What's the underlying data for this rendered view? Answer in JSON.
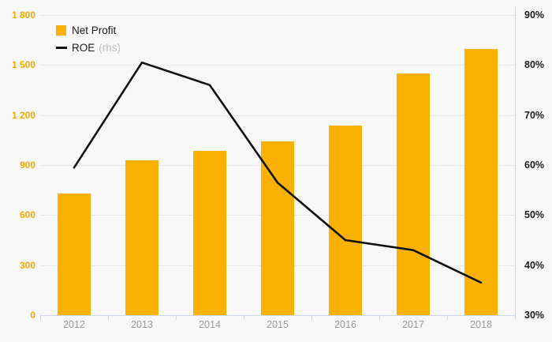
{
  "chart_data": {
    "type": "bar+line combo",
    "categories": [
      "2012",
      "2013",
      "2014",
      "2015",
      "2016",
      "2017",
      "2018"
    ],
    "series": [
      {
        "name": "Net Profit",
        "type": "bar",
        "axis": "left",
        "color": "#fab102",
        "values": [
          730,
          930,
          985,
          1040,
          1135,
          1450,
          1595
        ]
      },
      {
        "name": "ROE",
        "axis_note": "(rhs)",
        "type": "line",
        "axis": "right",
        "color": "#111111",
        "values": [
          59.5,
          80.5,
          76,
          56.5,
          45,
          43,
          36.5
        ]
      }
    ],
    "left_axis": {
      "min": 0,
      "max": 1800,
      "step": 300,
      "labels": [
        "1 800",
        "1 500",
        "1 200",
        "900",
        "600",
        "300",
        "0"
      ],
      "label_color": "#f5a802"
    },
    "right_axis": {
      "min": 30,
      "max": 90,
      "step": 10,
      "labels": [
        "90%",
        "80%",
        "70%",
        "60%",
        "50%",
        "40%",
        "30%"
      ],
      "label_color": "#1a1a1a"
    },
    "grid": true,
    "legend_position": "top-left",
    "background": "#f8f8f8",
    "gridline_color": "#e8e8e8",
    "axis_line_color": "#ccd6eb"
  }
}
